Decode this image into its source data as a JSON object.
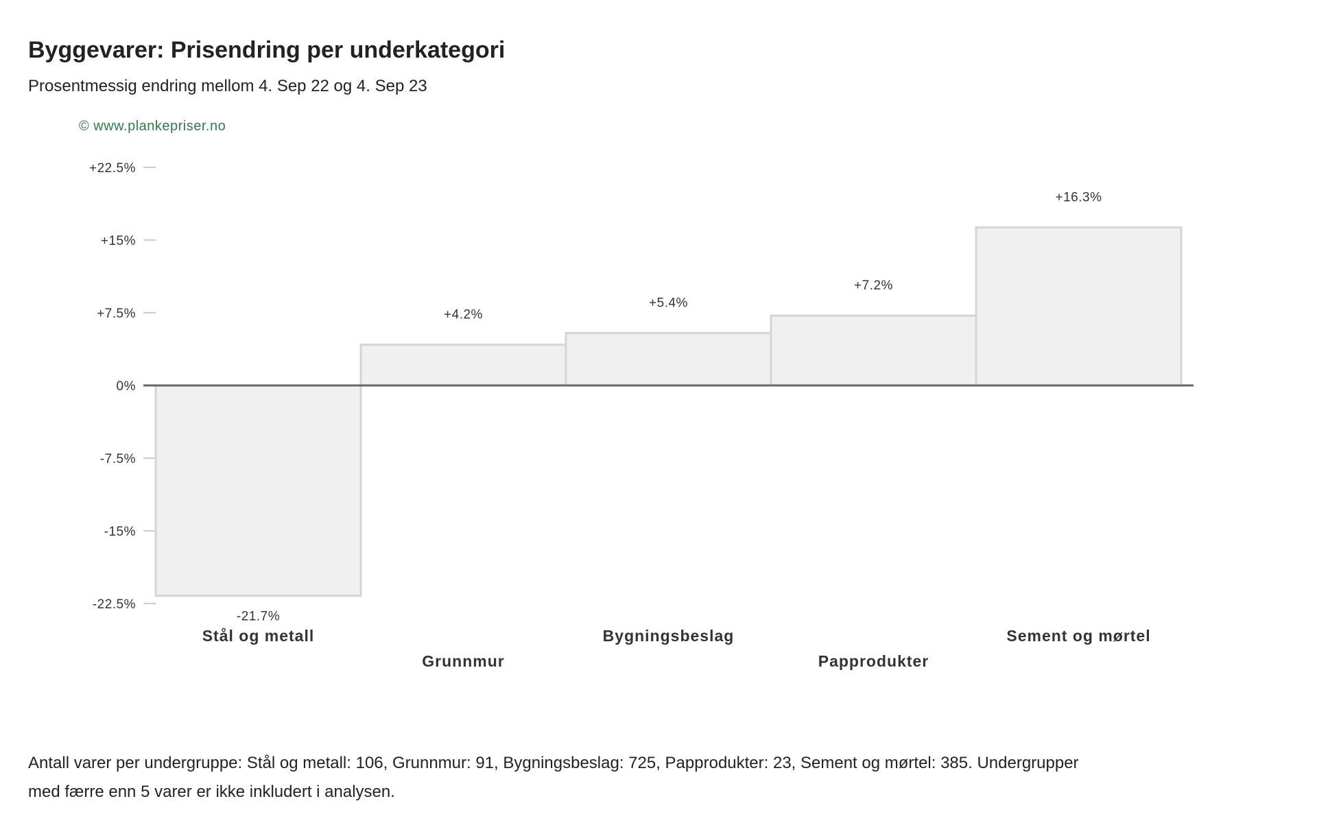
{
  "page": {
    "title": "Byggevarer: Prisendring per underkategori",
    "subtitle": "Prosentmessig endring mellom 4. Sep 22 og 4. Sep 23",
    "credit": "© www.plankepriser.no",
    "footnote": "Antall varer per undergruppe: Stål og metall: 106, Grunnmur: 91, Bygningsbeslag: 725, Papprodukter: 23, Sement og mørtel: 385. Undergrupper med færre enn 5 varer er ikke inkludert i analysen."
  },
  "colors": {
    "bar_fill": "#f0f0f0",
    "bar_stroke": "#d4d4d4",
    "zero_line": "#666666",
    "tick_line": "#bbbbbb",
    "credit": "#2e7d46",
    "text": "#333333"
  },
  "chart_data": {
    "type": "bar",
    "categories": [
      "Stål og metall",
      "Grunnmur",
      "Bygningsbeslag",
      "Papprodukter",
      "Sement og mørtel"
    ],
    "values": [
      -21.7,
      4.2,
      5.4,
      7.2,
      16.3
    ],
    "value_labels": [
      "-21.7%",
      "+4.2%",
      "+5.4%",
      "+7.2%",
      "+16.3%"
    ],
    "y_ticks": [
      22.5,
      15,
      7.5,
      0,
      -7.5,
      -15,
      -22.5
    ],
    "y_tick_labels": [
      "+22.5%",
      "+15%",
      "+7.5%",
      "0%",
      "-7.5%",
      "-15%",
      "-22.5%"
    ],
    "ylim": [
      -22.5,
      22.5
    ],
    "xlabel": "",
    "ylabel": "",
    "grid": false,
    "legend": "none"
  }
}
